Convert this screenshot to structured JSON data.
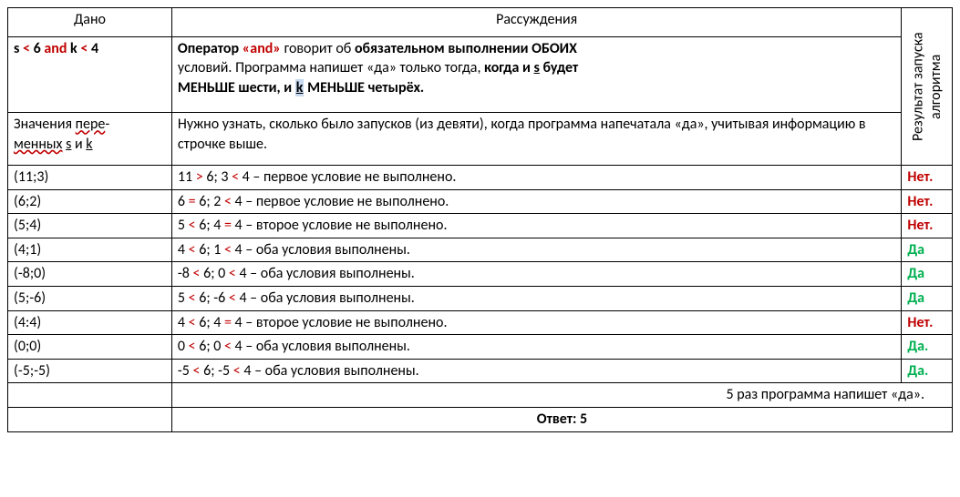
{
  "headers": {
    "dano": "Дано",
    "reasoning": "Рассуждения",
    "result": "Результат запуска алгоритма"
  },
  "cond": {
    "s": "s",
    "lt1": "<",
    "six": "6",
    "and": "and",
    "k": "k",
    "lt2": "<",
    "four": "4"
  },
  "expl1": {
    "p1": "Оператор ",
    "and": "«and»",
    "p2": " говорит об ",
    "p3": "обязательном выполнении ОБОИХ",
    "p4": "условий",
    "p5": ". Программа напишет «да» только тогда, ",
    "p6": "когда и ",
    "s": "s",
    "p7": " будет",
    "p8": "МЕНЬШЕ шести, и ",
    "k": "k",
    "p9": " МЕНЬШЕ четырёх."
  },
  "vars_label": {
    "p1": "Значения ",
    "p2": "пере",
    "p3": "менных",
    "sp1": " ",
    "s": "s",
    "and": " и ",
    "k": "k"
  },
  "expl2": "Нужно узнать, сколько было запусков (из девяти), когда программа напечатала «да», учитывая информацию в строчке выше.",
  "rows": [
    {
      "pair": "(11;3)",
      "a": "11 ",
      "op1": ">",
      "b": " 6; 3 ",
      "op2": "<",
      "c": " 4 – первое условие не выполнено.",
      "op1c": "red",
      "op2c": "red",
      "res": "Нет.",
      "resc": "red"
    },
    {
      "pair": "(6;2)",
      "a": "6 ",
      "op1": "=",
      "b": " 6; 2 ",
      "op2": "<",
      "c": " 4 – первое условие не выполнено.",
      "op1c": "red",
      "op2c": "red",
      "res": "Нет.",
      "resc": "red"
    },
    {
      "pair": "(5;4)",
      "a": "5 ",
      "op1": "<",
      "b": " 6; 4 ",
      "op2": "=",
      "c": " 4 – второе условие не выполнено.",
      "op1c": "red",
      "op2c": "red",
      "res": "Нет.",
      "resc": "red"
    },
    {
      "pair": "(4;1)",
      "a": "4 ",
      "op1": "<",
      "b": " 6; 1 ",
      "op2": "<",
      "c": " 4 – оба условия выполнены.",
      "op1c": "red",
      "op2c": "red",
      "res": "Да",
      "resc": "grn"
    },
    {
      "pair": "(-8;0)",
      "a": "-8 ",
      "op1": "<",
      "b": " 6; 0 ",
      "op2": "<",
      "c": " 4 – оба условия выполнены.",
      "op1c": "red",
      "op2c": "red",
      "res": "Да",
      "resc": "grn"
    },
    {
      "pair": "(5;-6)",
      "a": "5 ",
      "op1": "<",
      "b": " 6; -6 ",
      "op2": "<",
      "c": " 4 – оба условия выполнены.",
      "op1c": "red",
      "op2c": "red",
      "res": "Да",
      "resc": "grn"
    },
    {
      "pair": "(4:4)",
      "a": "4 ",
      "op1": "<",
      "b": " 6; 4 ",
      "op2": "=",
      "c": " 4 – второе условие не выполнено.",
      "op1c": "red",
      "op2c": "red",
      "res": "Нет.",
      "resc": "red"
    },
    {
      "pair": "(0;0)",
      "a": "0 ",
      "op1": "<",
      "b": " 6; 0 ",
      "op2": "<",
      "c": " 4 – оба условия выполнены.",
      "op1c": "red",
      "op2c": "red",
      "res": "Да.",
      "resc": "grn"
    },
    {
      "pair": "(-5;-5)",
      "a": "-5 ",
      "op1": "<",
      "b": " 6; -5 ",
      "op2": "<",
      "c": " 4 – оба условия выполнены.",
      "op1c": "red",
      "op2c": "red",
      "res": "Да.",
      "resc": "grn"
    }
  ],
  "summary": "5 раз программа напишет «да».",
  "answer": "Ответ: 5",
  "colors": {
    "red": "#c00000",
    "green": "#00b050",
    "highlight": "#c6d9f0",
    "border": "#000000",
    "text": "#000000"
  },
  "fontsize_pt": 12
}
